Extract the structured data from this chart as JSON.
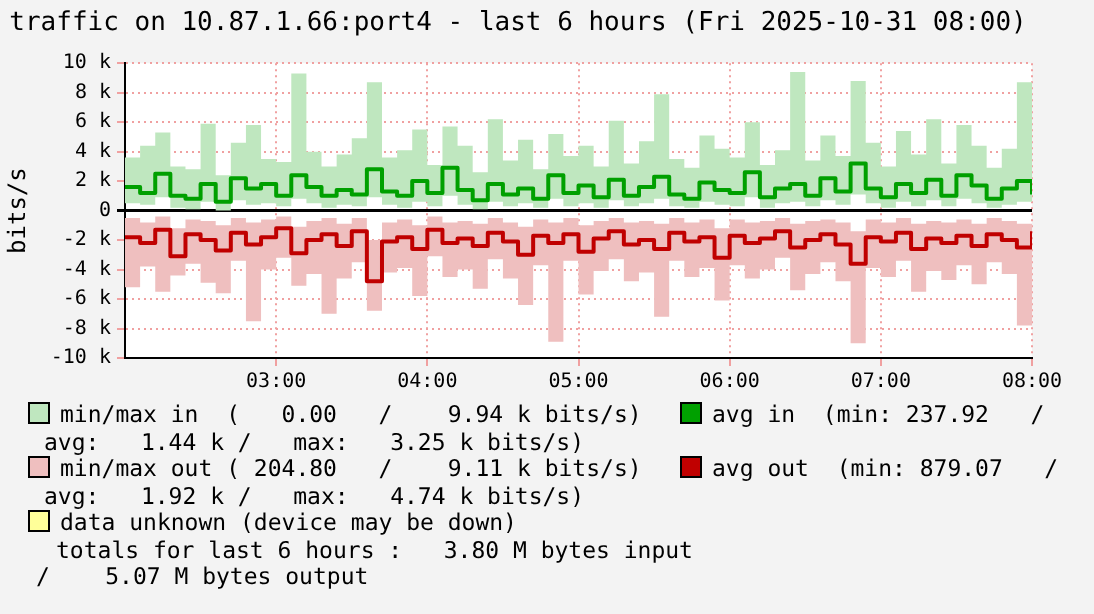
{
  "chart_data": {
    "type": "line",
    "title": "traffic on 10.87.1.66:port4 - last 6 hours (Fri 2025-10-31 08:00)",
    "ylabel": "bits/s",
    "x": [
      2.0,
      2.1,
      2.2,
      2.3,
      2.4,
      2.5,
      2.6,
      2.7,
      2.8,
      2.9,
      3.0,
      3.1,
      3.2,
      3.3,
      3.4,
      3.5,
      3.6,
      3.7,
      3.8,
      3.9,
      4.0,
      4.1,
      4.2,
      4.3,
      4.4,
      4.5,
      4.6,
      4.7,
      4.8,
      4.9,
      5.0,
      5.1,
      5.2,
      5.3,
      5.4,
      5.5,
      5.6,
      5.7,
      5.8,
      5.9,
      6.0,
      6.1,
      6.2,
      6.3,
      6.4,
      6.5,
      6.6,
      6.7,
      6.8,
      6.9,
      7.0,
      7.1,
      7.2,
      7.3,
      7.4,
      7.5,
      7.6,
      7.7,
      7.8,
      7.9,
      8.0
    ],
    "xlim": [
      2,
      8
    ],
    "xticks": [
      {
        "value": 3,
        "label": "03:00"
      },
      {
        "value": 4,
        "label": "04:00"
      },
      {
        "value": 5,
        "label": "05:00"
      },
      {
        "value": 6,
        "label": "06:00"
      },
      {
        "value": 7,
        "label": "07:00"
      },
      {
        "value": 8,
        "label": "08:00"
      }
    ],
    "ylim": [
      -10000,
      10000
    ],
    "yticks": [
      {
        "value": -10000,
        "label": "-10 k"
      },
      {
        "value": -8000,
        "label": "-8 k"
      },
      {
        "value": -6000,
        "label": "-6 k"
      },
      {
        "value": -4000,
        "label": "-4 k"
      },
      {
        "value": -2000,
        "label": "-2 k"
      },
      0,
      {
        "value": 2000,
        "label": "2 k"
      },
      {
        "value": 4000,
        "label": "4 k"
      },
      {
        "value": 6000,
        "label": "6 k"
      },
      {
        "value": 8000,
        "label": "8 k"
      },
      {
        "value": 10000,
        "label": "10 k"
      }
    ],
    "grid": true,
    "legend": "bottom",
    "marker": "none",
    "series": [
      {
        "name": "avg in",
        "type": "step",
        "color": "#00a000",
        "values": [
          1600,
          1200,
          2500,
          1000,
          800,
          1800,
          600,
          2200,
          1500,
          1800,
          1000,
          2400,
          1600,
          1000,
          1400,
          1100,
          2800,
          1300,
          1000,
          2000,
          1200,
          2900,
          1400,
          700,
          1800,
          1100,
          1500,
          800,
          2400,
          1200,
          1700,
          900,
          2100,
          1000,
          1600,
          2300,
          1100,
          800,
          1900,
          1400,
          1200,
          2600,
          900,
          1500,
          1800,
          1000,
          2200,
          1300,
          3200,
          1500,
          900,
          1800,
          1200,
          2100,
          1000,
          2400,
          1700,
          800,
          1500,
          2000,
          1100
        ],
        "lower": [
          500,
          400,
          900,
          200,
          100,
          600,
          0,
          700,
          400,
          500,
          300,
          800,
          500,
          200,
          400,
          300,
          900,
          400,
          200,
          600,
          300,
          1000,
          400,
          100,
          600,
          300,
          500,
          200,
          800,
          300,
          500,
          200,
          700,
          300,
          500,
          800,
          300,
          200,
          600,
          400,
          300,
          900,
          200,
          500,
          600,
          300,
          700,
          400,
          1100,
          500,
          200,
          600,
          300,
          700,
          300,
          800,
          500,
          200,
          400,
          600,
          300
        ],
        "upper": [
          3600,
          4400,
          5300,
          3000,
          2800,
          5900,
          2400,
          4600,
          5800,
          3500,
          3300,
          9300,
          4000,
          3000,
          3800,
          4900,
          8700,
          3600,
          4100,
          5500,
          3100,
          5700,
          4400,
          2600,
          6200,
          3400,
          4800,
          2800,
          5200,
          3700,
          4400,
          3000,
          6100,
          3200,
          4700,
          7900,
          3500,
          2900,
          5100,
          4200,
          3600,
          6000,
          3100,
          4100,
          9400,
          3400,
          5100,
          3700,
          8800,
          4600,
          3000,
          5400,
          3800,
          6200,
          3200,
          5800,
          4400,
          2900,
          4200,
          8700,
          3600
        ]
      },
      {
        "name": "avg out",
        "type": "step",
        "color": "#c00000",
        "values": [
          -1800,
          -2200,
          -1300,
          -3100,
          -1600,
          -2000,
          -2700,
          -1500,
          -2300,
          -1800,
          -1200,
          -2900,
          -2000,
          -1600,
          -2400,
          -1400,
          -4800,
          -2100,
          -1800,
          -2600,
          -1300,
          -2200,
          -1900,
          -2400,
          -1500,
          -2100,
          -3000,
          -1700,
          -2200,
          -1600,
          -2800,
          -1900,
          -1400,
          -2300,
          -2000,
          -2600,
          -1500,
          -2100,
          -1800,
          -3200,
          -1700,
          -2200,
          -1900,
          -1400,
          -2500,
          -2000,
          -1600,
          -2300,
          -3600,
          -1800,
          -2100,
          -1500,
          -2600,
          -1900,
          -2200,
          -1700,
          -2400,
          -1600,
          -2000,
          -2500,
          -1400
        ],
        "lower": [
          -5200,
          -3800,
          -5500,
          -4400,
          -3600,
          -4900,
          -5600,
          -3400,
          -7500,
          -4000,
          -3200,
          -5100,
          -4300,
          -7000,
          -4600,
          -3500,
          -6800,
          -4200,
          -3900,
          -5800,
          -3100,
          -4500,
          -4000,
          -5300,
          -3300,
          -4600,
          -6400,
          -3700,
          -8900,
          -3400,
          -5700,
          -4100,
          -3300,
          -4800,
          -4200,
          -7200,
          -3400,
          -4500,
          -3900,
          -6100,
          -3700,
          -4600,
          -4000,
          -3200,
          -5400,
          -4300,
          -3500,
          -4800,
          -9000,
          -3900,
          -4500,
          -3400,
          -5500,
          -4100,
          -4700,
          -3700,
          -5000,
          -3500,
          -4300,
          -7800,
          -3200
        ],
        "upper": [
          -500,
          -800,
          -400,
          -1200,
          -600,
          -700,
          -1000,
          -500,
          -800,
          -600,
          -400,
          -1100,
          -700,
          -500,
          -900,
          -500,
          -2000,
          -800,
          -600,
          -1000,
          -400,
          -800,
          -700,
          -900,
          -500,
          -800,
          -1100,
          -600,
          -800,
          -500,
          -1000,
          -700,
          -500,
          -800,
          -700,
          -900,
          -500,
          -800,
          -600,
          -1200,
          -600,
          -800,
          -700,
          -500,
          -900,
          -700,
          -600,
          -800,
          -1400,
          -600,
          -800,
          -500,
          -900,
          -700,
          -800,
          -600,
          -900,
          -500,
          -700,
          -900,
          -500
        ]
      }
    ],
    "annotations": [
      "min/max in  (   0.00   /    9.94 k bits/s)",
      "(min: 237.92   /\navg:   1.44 k /   max:   3.25 k bits/s)",
      "min/max out ( 204.80   /    9.11 k bits/s)",
      "(min: 879.07   /\navg:   1.92 k /   max:   4.74 k bits/s)",
      "data unknown (device may be down)",
      "totals for last 6 hours :   3.80 M bytes input\n/    5.07 M bytes output"
    ]
  }
}
